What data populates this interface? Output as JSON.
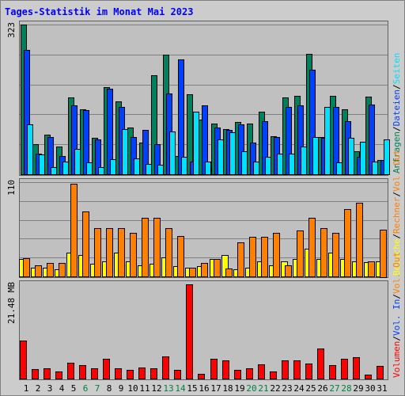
{
  "title": "Tages-Statistik im Monat Mai 2023",
  "colors": {
    "page_bg": "#ffffff",
    "frame_bg": "#cccccc",
    "plot_bg": "#c0c0c0",
    "title_color": "#0000ff",
    "grid": "#808080",
    "weekend_label": "#008040",
    "weekday_label": "#000000",
    "anfragen": "#00805c",
    "dateien": "#0040ff",
    "seiten": "#00e0ff",
    "besuche": "#ffff00",
    "rechner": "#ff8000",
    "volumen": "#ff0000"
  },
  "chart_data": [
    {
      "type": "bar",
      "name": "top-panel",
      "max_label": "323",
      "ylim": [
        0,
        323
      ],
      "grid": true,
      "right_labels": [
        {
          "text": "Anfragen",
          "color": "#00805c"
        },
        {
          "text": "/",
          "color": "#000000"
        },
        {
          "text": "Dateien",
          "color": "#0040ff"
        },
        {
          "text": "/",
          "color": "#000000"
        },
        {
          "text": "Seiten",
          "color": "#00e0ff"
        }
      ],
      "categories": [
        "1",
        "2",
        "3",
        "4",
        "5",
        "6",
        "7",
        "8",
        "9",
        "10",
        "11",
        "12",
        "13",
        "14",
        "15",
        "16",
        "17",
        "18",
        "19",
        "20",
        "21",
        "22",
        "23",
        "24",
        "25",
        "26",
        "27",
        "28",
        "29",
        "30",
        "31"
      ],
      "weekend_days": [
        6,
        7,
        13,
        14,
        20,
        21,
        27,
        28
      ],
      "series": [
        {
          "name": "Anfragen",
          "color": "#00805c",
          "values": [
            323,
            65,
            85,
            60,
            165,
            140,
            78,
            188,
            158,
            100,
            68,
            213,
            258,
            40,
            173,
            118,
            110,
            98,
            112,
            110,
            135,
            82,
            165,
            170,
            260,
            80,
            170,
            140,
            50,
            168,
            30
          ]
        },
        {
          "name": "Dateien",
          "color": "#0040ff",
          "values": [
            268,
            45,
            80,
            40,
            148,
            138,
            75,
            185,
            145,
            80,
            95,
            65,
            175,
            248,
            28,
            148,
            100,
            95,
            108,
            68,
            115,
            80,
            145,
            148,
            225,
            78,
            145,
            115,
            38,
            150,
            30
          ]
        },
        {
          "name": "Seiten",
          "color": "#00e0ff",
          "values": [
            108,
            42,
            15,
            28,
            55,
            25,
            15,
            33,
            98,
            35,
            22,
            20,
            92,
            38,
            135,
            28,
            75,
            90,
            50,
            28,
            38,
            45,
            45,
            60,
            80,
            145,
            25,
            78,
            70,
            28,
            75
          ]
        }
      ]
    },
    {
      "type": "bar",
      "name": "middle-panel",
      "max_label": "110",
      "ylim": [
        0,
        110
      ],
      "grid": true,
      "right_labels": [
        {
          "text": "Besuche",
          "color": "#ffff00"
        },
        {
          "text": "/",
          "color": "#000000"
        },
        {
          "text": "Rechner",
          "color": "#ff8000"
        },
        {
          "text": "/",
          "color": "#000000"
        },
        {
          "text": "Vol. Out",
          "color": "#ff8000"
        }
      ],
      "categories": [
        "1",
        "2",
        "3",
        "4",
        "5",
        "6",
        "7",
        "8",
        "9",
        "10",
        "11",
        "12",
        "13",
        "14",
        "15",
        "16",
        "17",
        "18",
        "19",
        "20",
        "21",
        "22",
        "23",
        "24",
        "25",
        "26",
        "27",
        "28",
        "29",
        "30",
        "31"
      ],
      "series": [
        {
          "name": "Besuche",
          "color": "#ffff00",
          "values": [
            20,
            10,
            10,
            8,
            28,
            25,
            15,
            18,
            28,
            18,
            13,
            15,
            22,
            12,
            10,
            12,
            20,
            25,
            8,
            10,
            18,
            13,
            18,
            20,
            32,
            20,
            28,
            20,
            18,
            17,
            18
          ]
        },
        {
          "name": "Rechner",
          "color": "#ff8000",
          "values": [
            21,
            13,
            16,
            16,
            108,
            76,
            56,
            56,
            56,
            51,
            68,
            68,
            56,
            47,
            10,
            16,
            20,
            9,
            40,
            46,
            46,
            51,
            13,
            54,
            68,
            56,
            51,
            79,
            86,
            18,
            55
          ]
        }
      ]
    },
    {
      "type": "bar",
      "name": "bottom-panel",
      "max_label": "21.48 MB",
      "ylim": [
        0,
        21.48
      ],
      "grid": false,
      "right_labels": [
        {
          "text": "Volumen",
          "color": "#ff0000"
        },
        {
          "text": "/",
          "color": "#000000"
        },
        {
          "text": "Vol. In",
          "color": "#0040ff"
        },
        {
          "text": "/",
          "color": "#000000"
        },
        {
          "text": "Vol. Out",
          "color": "#ff8000"
        }
      ],
      "categories": [
        "1",
        "2",
        "3",
        "4",
        "5",
        "6",
        "7",
        "8",
        "9",
        "10",
        "11",
        "12",
        "13",
        "14",
        "15",
        "16",
        "17",
        "18",
        "19",
        "20",
        "21",
        "22",
        "23",
        "24",
        "25",
        "26",
        "27",
        "28",
        "29",
        "30",
        "31"
      ],
      "series": [
        {
          "name": "Volumen",
          "color": "#ff0000",
          "values": [
            8.6,
            2.2,
            2.4,
            1.6,
            3.6,
            3.1,
            2.4,
            4.6,
            2.4,
            2.0,
            2.6,
            2.4,
            5.0,
            1.9,
            21.48,
            1.0,
            4.5,
            4.1,
            1.9,
            2.4,
            3.3,
            1.6,
            4.1,
            4.1,
            3.5,
            6.9,
            3.1,
            4.6,
            4.9,
            0.9,
            2.9
          ]
        }
      ]
    }
  ]
}
